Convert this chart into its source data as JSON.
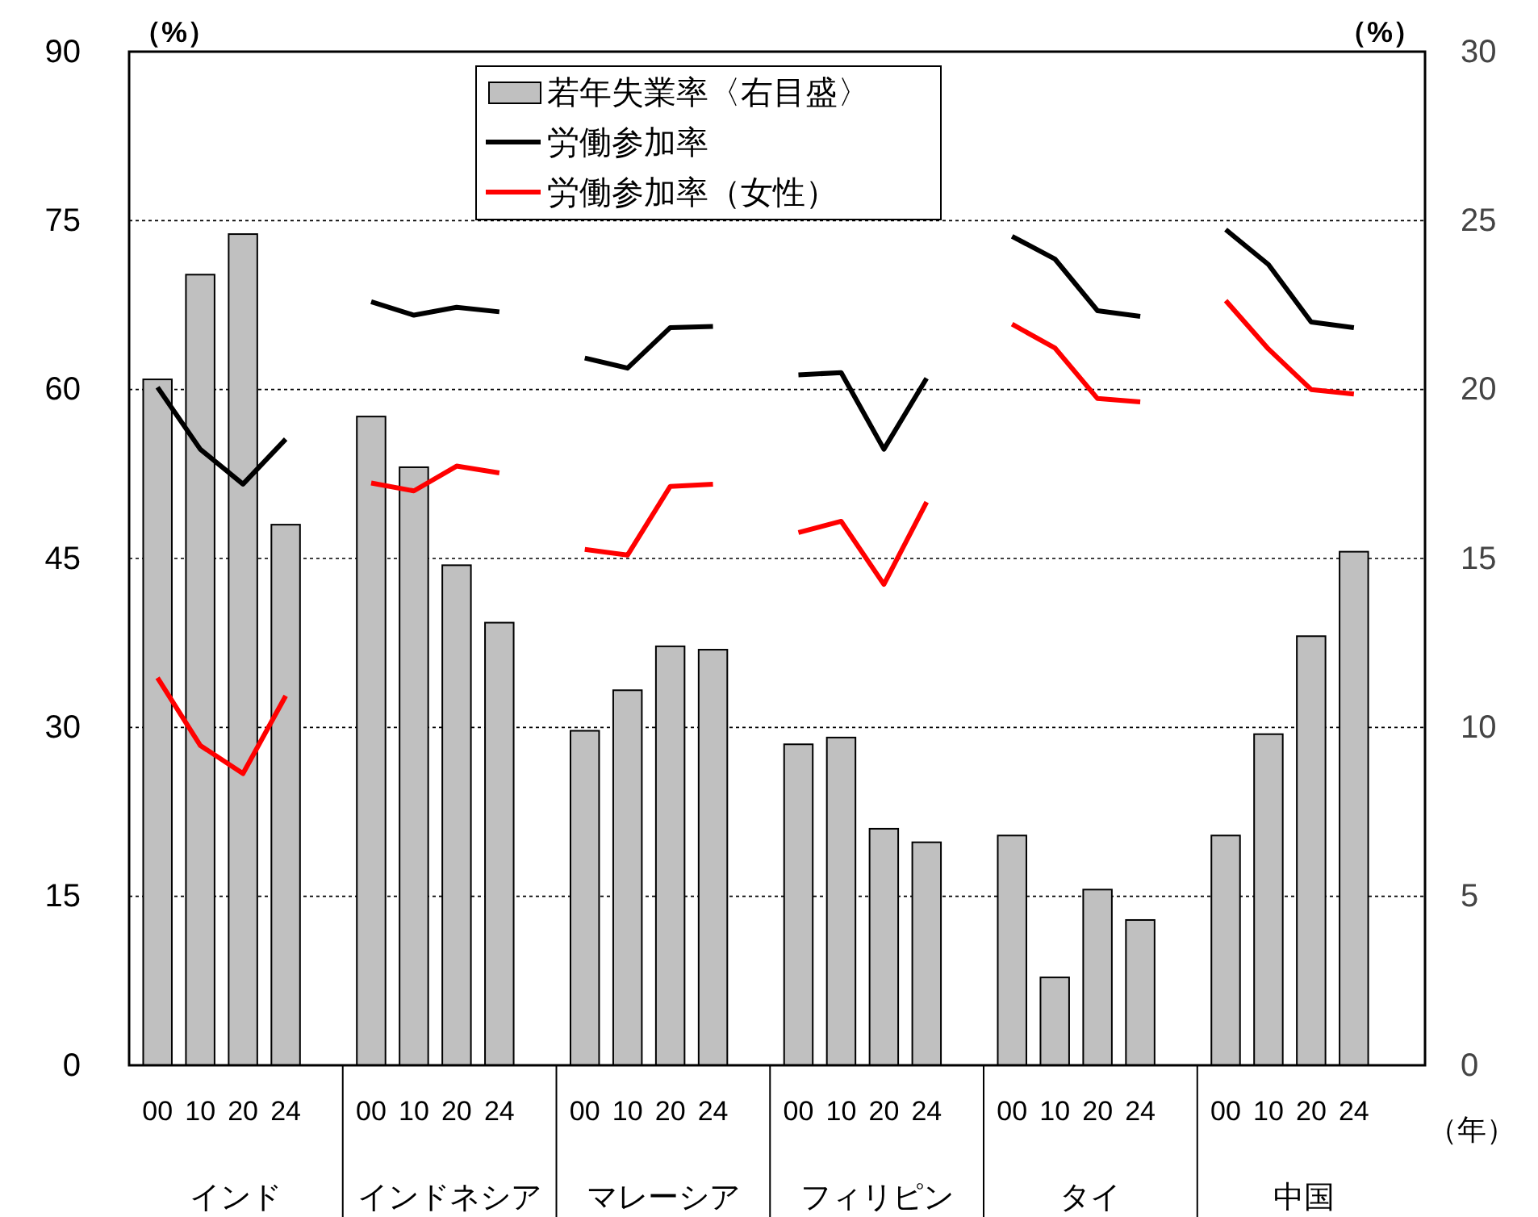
{
  "chart_data": {
    "type": "bar",
    "categories": [
      "00",
      "10",
      "20",
      "24",
      null,
      "00",
      "10",
      "20",
      "24",
      null,
      "00",
      "10",
      "20",
      "24",
      null,
      "00",
      "10",
      "20",
      "24",
      null,
      "00",
      "10",
      "20",
      "24",
      null,
      "00",
      "10",
      "20",
      "24",
      null
    ],
    "series": [
      {
        "name": "若年失業率〈右目盛〉",
        "axis": "y2",
        "color": "#c0c0c0",
        "values": [
          20.3,
          23.4,
          24.6,
          16.0,
          null,
          19.2,
          17.7,
          14.8,
          13.1,
          null,
          9.9,
          11.1,
          12.4,
          12.3,
          null,
          9.5,
          9.7,
          7.0,
          6.6,
          null,
          6.8,
          2.6,
          5.2,
          4.3,
          null,
          6.8,
          9.8,
          12.7,
          15.2,
          null
        ]
      },
      {
        "name": "労働参加率",
        "type": "line",
        "color": "#000000",
        "values": [
          60.2,
          54.7,
          51.6,
          55.6,
          null,
          67.8,
          66.6,
          67.3,
          66.9,
          null,
          62.8,
          61.9,
          65.5,
          65.6,
          null,
          61.3,
          61.5,
          54.7,
          61.0,
          null,
          73.6,
          71.6,
          67.0,
          66.5,
          null,
          74.2,
          71.1,
          66.0,
          65.5,
          null
        ]
      },
      {
        "name": "労働参加率（女性）",
        "type": "line",
        "color": "#ff0000",
        "values": [
          34.4,
          28.4,
          25.9,
          32.8,
          null,
          51.7,
          51.0,
          53.2,
          52.6,
          null,
          45.8,
          45.3,
          51.4,
          51.6,
          null,
          47.3,
          48.3,
          42.7,
          50.0,
          null,
          65.8,
          63.7,
          59.2,
          58.9,
          null,
          67.9,
          63.6,
          60.0,
          59.6,
          null
        ]
      }
    ],
    "ylabel": "（%）",
    "y2label": "（%）",
    "xlabel": "（年）",
    "ylim": [
      0,
      90
    ],
    "yticks": [
      0,
      15,
      30,
      45,
      60,
      75,
      90
    ],
    "y2lim": [
      0,
      30
    ],
    "y2ticks": [
      0,
      5,
      10,
      15,
      20,
      25,
      30
    ],
    "annotations": [
      "インド",
      "インドネシア",
      "マレーシア",
      "フィリピン",
      "タイ",
      "中国"
    ],
    "grid": "y",
    "legend": "top",
    "marker": "none",
    "line_style": "solid"
  }
}
